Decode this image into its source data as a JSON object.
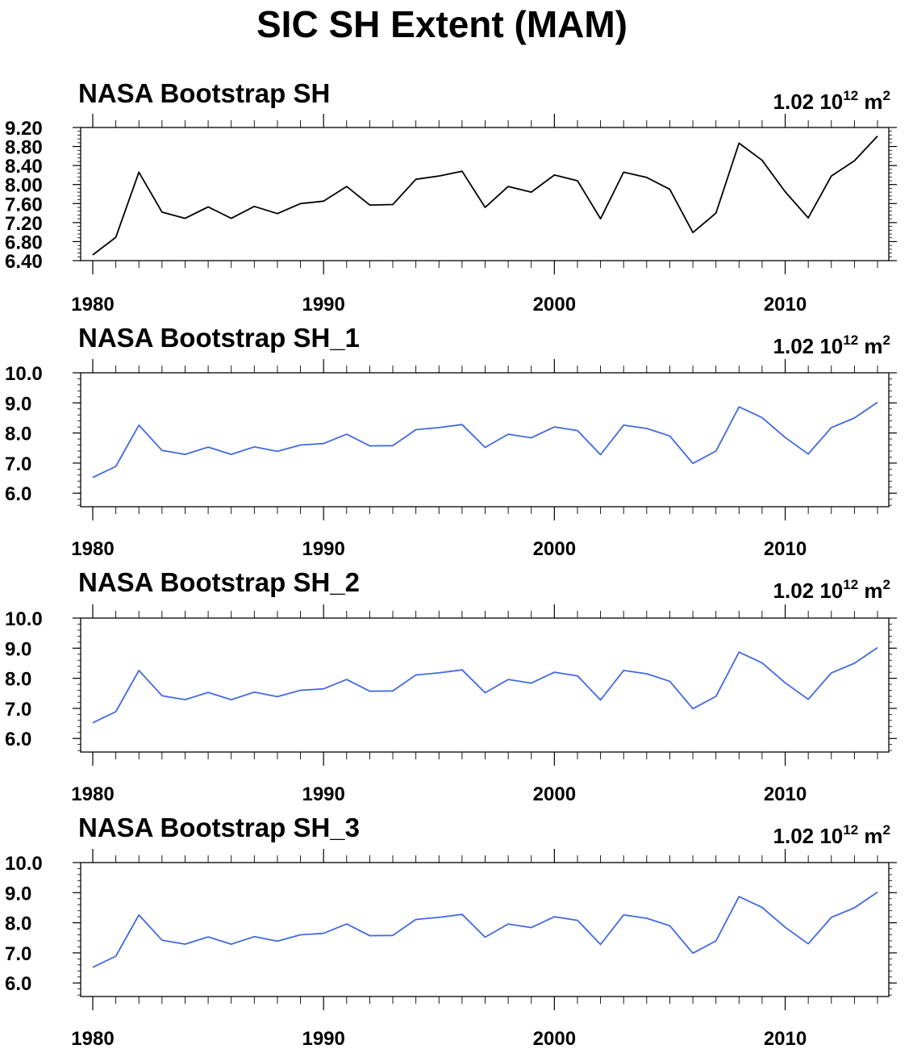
{
  "title": "SIC SH Extent (MAM)",
  "colors": {
    "black": "#000000",
    "blue": "#4169e1"
  },
  "chart_data": [
    {
      "type": "line",
      "title": "NASA Bootstrap SH",
      "units_value": "1.02 10",
      "units_exp": "12",
      "units_unit": "m",
      "units_unit_exp": "2",
      "line_color": "#000000",
      "xlim": [
        1980,
        2014
      ],
      "ylim": [
        6.4,
        9.2
      ],
      "yticks": [
        "6.40",
        "6.80",
        "7.20",
        "7.60",
        "8.00",
        "8.40",
        "8.80",
        "9.20"
      ],
      "xticks": [
        "1980",
        "1990",
        "2000",
        "2010"
      ],
      "x": [
        1980,
        1981,
        1982,
        1983,
        1984,
        1985,
        1986,
        1987,
        1988,
        1989,
        1990,
        1991,
        1992,
        1993,
        1994,
        1995,
        1996,
        1997,
        1998,
        1999,
        2000,
        2001,
        2002,
        2003,
        2004,
        2005,
        2006,
        2007,
        2008,
        2009,
        2010,
        2011,
        2012,
        2013,
        2014
      ],
      "values": [
        6.52,
        6.89,
        8.26,
        7.42,
        7.29,
        7.53,
        7.29,
        7.54,
        7.39,
        7.6,
        7.65,
        7.96,
        7.57,
        7.58,
        8.11,
        8.18,
        8.28,
        7.52,
        7.96,
        7.84,
        8.2,
        8.08,
        7.28,
        8.26,
        8.15,
        7.9,
        6.99,
        7.4,
        8.87,
        8.51,
        7.85,
        7.3,
        8.18,
        8.5,
        9.02
      ]
    },
    {
      "type": "line",
      "title": "NASA Bootstrap SH_1",
      "units_value": "1.02 10",
      "units_exp": "12",
      "units_unit": "m",
      "units_unit_exp": "2",
      "line_color": "#4169e1",
      "xlim": [
        1980,
        2014
      ],
      "ylim": [
        5.55,
        10.0
      ],
      "yticks": [
        "6.0",
        "7.0",
        "8.0",
        "9.0",
        "10.0"
      ],
      "xticks": [
        "1980",
        "1990",
        "2000",
        "2010"
      ],
      "x": [
        1980,
        1981,
        1982,
        1983,
        1984,
        1985,
        1986,
        1987,
        1988,
        1989,
        1990,
        1991,
        1992,
        1993,
        1994,
        1995,
        1996,
        1997,
        1998,
        1999,
        2000,
        2001,
        2002,
        2003,
        2004,
        2005,
        2006,
        2007,
        2008,
        2009,
        2010,
        2011,
        2012,
        2013,
        2014
      ],
      "values": [
        6.52,
        6.89,
        8.26,
        7.42,
        7.29,
        7.53,
        7.29,
        7.54,
        7.39,
        7.6,
        7.65,
        7.96,
        7.57,
        7.58,
        8.11,
        8.18,
        8.28,
        7.52,
        7.96,
        7.84,
        8.2,
        8.08,
        7.28,
        8.26,
        8.15,
        7.9,
        6.99,
        7.4,
        8.87,
        8.51,
        7.85,
        7.3,
        8.18,
        8.5,
        9.02
      ]
    },
    {
      "type": "line",
      "title": "NASA Bootstrap SH_2",
      "units_value": "1.02 10",
      "units_exp": "12",
      "units_unit": "m",
      "units_unit_exp": "2",
      "line_color": "#4169e1",
      "xlim": [
        1980,
        2014
      ],
      "ylim": [
        5.55,
        10.0
      ],
      "yticks": [
        "6.0",
        "7.0",
        "8.0",
        "9.0",
        "10.0"
      ],
      "xticks": [
        "1980",
        "1990",
        "2000",
        "2010"
      ],
      "x": [
        1980,
        1981,
        1982,
        1983,
        1984,
        1985,
        1986,
        1987,
        1988,
        1989,
        1990,
        1991,
        1992,
        1993,
        1994,
        1995,
        1996,
        1997,
        1998,
        1999,
        2000,
        2001,
        2002,
        2003,
        2004,
        2005,
        2006,
        2007,
        2008,
        2009,
        2010,
        2011,
        2012,
        2013,
        2014
      ],
      "values": [
        6.52,
        6.89,
        8.26,
        7.42,
        7.29,
        7.53,
        7.29,
        7.54,
        7.39,
        7.6,
        7.65,
        7.96,
        7.57,
        7.58,
        8.11,
        8.18,
        8.28,
        7.52,
        7.96,
        7.84,
        8.2,
        8.08,
        7.28,
        8.26,
        8.15,
        7.9,
        6.99,
        7.4,
        8.87,
        8.51,
        7.85,
        7.3,
        8.18,
        8.5,
        9.02
      ]
    },
    {
      "type": "line",
      "title": "NASA Bootstrap SH_3",
      "units_value": "1.02 10",
      "units_exp": "12",
      "units_unit": "m",
      "units_unit_exp": "2",
      "line_color": "#4169e1",
      "xlim": [
        1980,
        2014
      ],
      "ylim": [
        5.55,
        10.0
      ],
      "yticks": [
        "6.0",
        "7.0",
        "8.0",
        "9.0",
        "10.0"
      ],
      "xticks": [
        "1980",
        "1990",
        "2000",
        "2010"
      ],
      "x": [
        1980,
        1981,
        1982,
        1983,
        1984,
        1985,
        1986,
        1987,
        1988,
        1989,
        1990,
        1991,
        1992,
        1993,
        1994,
        1995,
        1996,
        1997,
        1998,
        1999,
        2000,
        2001,
        2002,
        2003,
        2004,
        2005,
        2006,
        2007,
        2008,
        2009,
        2010,
        2011,
        2012,
        2013,
        2014
      ],
      "values": [
        6.52,
        6.89,
        8.26,
        7.42,
        7.29,
        7.53,
        7.29,
        7.54,
        7.39,
        7.6,
        7.65,
        7.96,
        7.57,
        7.58,
        8.11,
        8.18,
        8.28,
        7.52,
        7.96,
        7.84,
        8.2,
        8.08,
        7.28,
        8.26,
        8.15,
        7.9,
        6.99,
        7.4,
        8.87,
        8.51,
        7.85,
        7.3,
        8.18,
        8.5,
        9.02
      ]
    }
  ]
}
